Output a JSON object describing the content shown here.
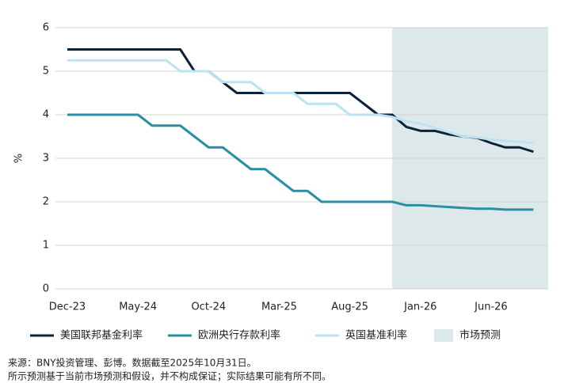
{
  "chart_data": {
    "type": "line",
    "y_label": "%",
    "categories": [
      "Dec-23",
      null,
      null,
      null,
      null,
      "May-24",
      null,
      null,
      null,
      null,
      "Oct-24",
      null,
      null,
      null,
      null,
      "Mar-25",
      null,
      null,
      null,
      null,
      "Aug-25",
      null,
      null,
      null,
      null,
      "Jan-26",
      null,
      null,
      null,
      null,
      "Jun-26",
      null,
      null,
      null
    ],
    "series": [
      {
        "name": "美国联邦基金利率",
        "color": "#0b2239",
        "values": [
          5.5,
          5.5,
          5.5,
          5.5,
          5.5,
          5.5,
          5.5,
          5.5,
          5.5,
          5.0,
          5.0,
          4.75,
          4.5,
          4.5,
          4.5,
          4.5,
          4.5,
          4.5,
          4.5,
          4.5,
          4.5,
          4.25,
          4.0,
          4.0,
          3.72,
          3.63,
          3.63,
          3.55,
          3.5,
          3.47,
          3.35,
          3.25,
          3.25,
          3.15
        ]
      },
      {
        "name": "欧洲央行存款利率",
        "color": "#2a8fa3",
        "values": [
          4.0,
          4.0,
          4.0,
          4.0,
          4.0,
          4.0,
          3.75,
          3.75,
          3.75,
          3.5,
          3.25,
          3.25,
          3.0,
          2.75,
          2.75,
          2.5,
          2.25,
          2.25,
          2.0,
          2.0,
          2.0,
          2.0,
          2.0,
          2.0,
          1.92,
          1.92,
          1.9,
          1.88,
          1.86,
          1.84,
          1.84,
          1.82,
          1.82,
          1.82
        ]
      },
      {
        "name": "英国基准利率",
        "color": "#bde3f0",
        "values": [
          5.25,
          5.25,
          5.25,
          5.25,
          5.25,
          5.25,
          5.25,
          5.25,
          5.0,
          5.0,
          5.0,
          4.75,
          4.75,
          4.75,
          4.5,
          4.5,
          4.5,
          4.25,
          4.25,
          4.25,
          4.0,
          4.0,
          4.0,
          3.95,
          3.85,
          3.8,
          3.7,
          3.6,
          3.5,
          3.48,
          3.43,
          3.4,
          3.38,
          3.35
        ]
      }
    ],
    "shaded_region": {
      "name": "市场预测",
      "color": "#dde8eb",
      "from": 23
    },
    "ylim": [
      0,
      6
    ],
    "yticks": [
      0,
      1,
      2,
      3,
      4,
      5,
      6
    ],
    "grid": true,
    "notes": [
      "来源：BNY投资管理、彭博。数据截至2025年10月31日。",
      "所示预测基于当前市场预测和假设，并不构成保证；实际结果可能有所不同。"
    ]
  }
}
